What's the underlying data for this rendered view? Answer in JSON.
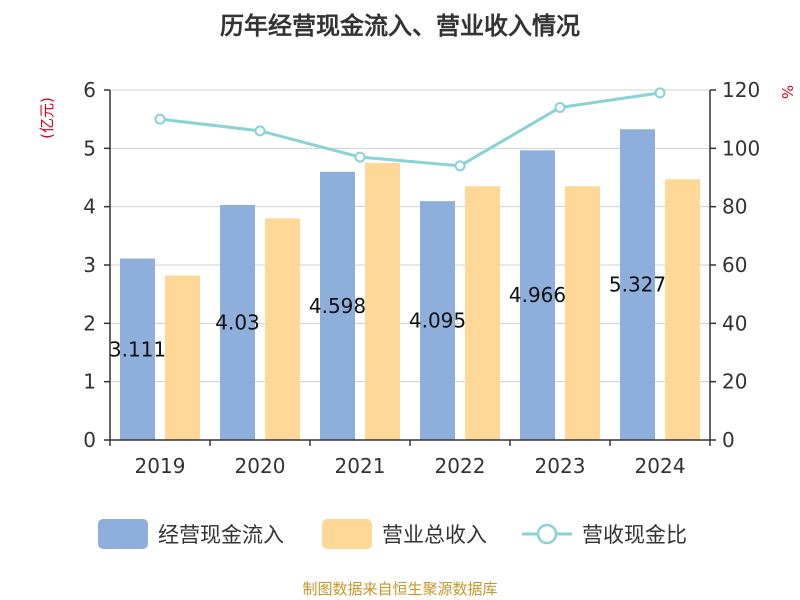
{
  "chart_data": {
    "type": "bar",
    "title": "历年经营现金流入、营业收入情况",
    "y_left_unit": "(亿元)",
    "y_right_unit": "%",
    "categories": [
      "2019",
      "2020",
      "2021",
      "2022",
      "2023",
      "2024"
    ],
    "y_left_ticks": [
      "0",
      "1",
      "2",
      "3",
      "4",
      "5",
      "6"
    ],
    "y_right_ticks": [
      "0",
      "20",
      "40",
      "60",
      "80",
      "100",
      "120"
    ],
    "ylim_left": [
      0,
      6
    ],
    "ylim_right": [
      0,
      120
    ],
    "series": [
      {
        "name": "经营现金流入",
        "type": "bar",
        "axis": "left",
        "color": "#8eaedc",
        "values": [
          3.111,
          4.03,
          4.598,
          4.095,
          4.966,
          5.327
        ],
        "labels": [
          "3.111",
          "4.03",
          "4.598",
          "4.095",
          "4.966",
          "5.327"
        ]
      },
      {
        "name": "营业总收入",
        "type": "bar",
        "axis": "left",
        "color": "#ffd797",
        "values": [
          2.82,
          3.8,
          4.75,
          4.35,
          4.35,
          4.47
        ]
      },
      {
        "name": "营收现金比",
        "type": "line",
        "axis": "right",
        "color": "#88d3d5",
        "values": [
          110,
          106,
          97,
          94,
          114,
          119
        ]
      }
    ],
    "legend_position": "bottom",
    "grid": true
  },
  "footer": {
    "source": "制图数据来自恒生聚源数据库"
  }
}
